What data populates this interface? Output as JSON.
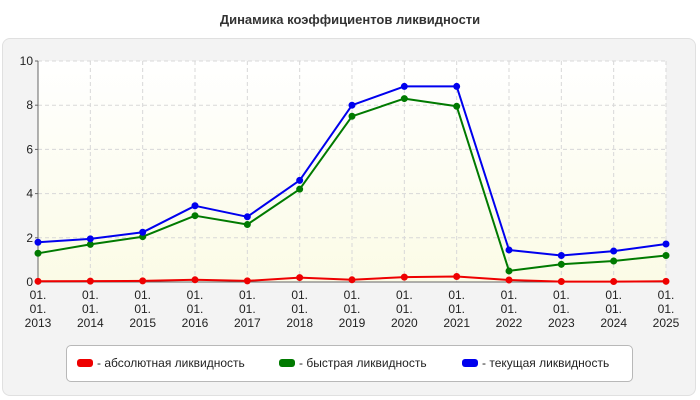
{
  "chart_data": {
    "type": "line",
    "title": "Динамика коэффициентов ликвидности",
    "xlabel": "",
    "ylabel": "",
    "categories": [
      [
        "01.",
        "01.",
        "2013"
      ],
      [
        "01.",
        "01.",
        "2014"
      ],
      [
        "01.",
        "01.",
        "2015"
      ],
      [
        "01.",
        "01.",
        "2016"
      ],
      [
        "01.",
        "01.",
        "2017"
      ],
      [
        "01.",
        "01.",
        "2018"
      ],
      [
        "01.",
        "01.",
        "2019"
      ],
      [
        "01.",
        "01.",
        "2020"
      ],
      [
        "01.",
        "01.",
        "2021"
      ],
      [
        "01.",
        "01.",
        "2022"
      ],
      [
        "01.",
        "01.",
        "2023"
      ],
      [
        "01.",
        "01.",
        "2024"
      ],
      [
        "01.",
        "01.",
        "2025"
      ]
    ],
    "y_ticks": [
      "0",
      "2",
      "4",
      "6",
      "8",
      "10"
    ],
    "ylim": [
      0,
      10
    ],
    "grid": true,
    "legend_position": "bottom",
    "series": [
      {
        "name": "- абсолютная ликвидность",
        "color": "#ee0000",
        "values": [
          0.03,
          0.04,
          0.05,
          0.1,
          0.05,
          0.2,
          0.1,
          0.22,
          0.25,
          0.09,
          0.02,
          0.02,
          0.03
        ]
      },
      {
        "name": "- быстрая ликвидность",
        "color": "#007a00",
        "values": [
          1.3,
          1.7,
          2.05,
          3.0,
          2.6,
          4.2,
          7.5,
          8.3,
          7.95,
          0.5,
          0.8,
          0.95,
          1.2
        ]
      },
      {
        "name": "- текущая ликвидность",
        "color": "#0000ee",
        "values": [
          1.8,
          1.95,
          2.25,
          3.45,
          2.95,
          4.6,
          8.0,
          8.85,
          8.85,
          1.45,
          1.2,
          1.4,
          1.72
        ]
      }
    ]
  }
}
